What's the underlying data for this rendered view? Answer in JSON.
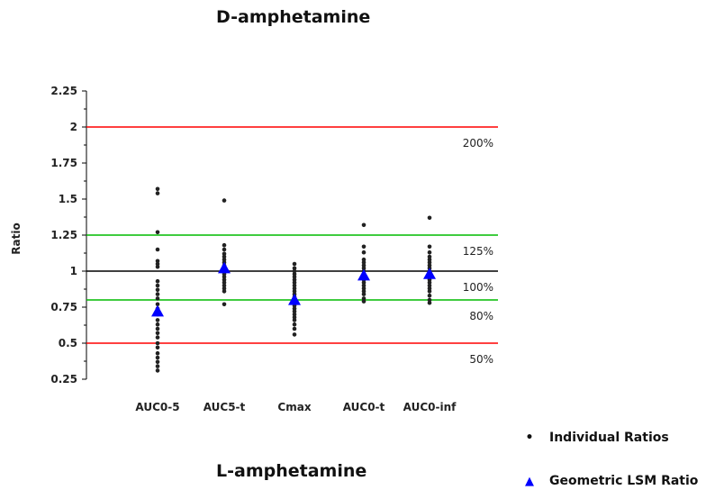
{
  "titles": {
    "top": "D-amphetamine",
    "bottom": "L-amphetamine"
  },
  "legend": {
    "individual": "Individual Ratios",
    "geometric": "Geometric LSM Ratio"
  },
  "colors": {
    "red_line": "#ff0000",
    "green_line": "#00bb00",
    "unity_line": "#000000",
    "points": "#222222",
    "lsm": "#0000ff"
  },
  "chart_data": {
    "type": "scatter",
    "ylabel": "Ratio",
    "ylim": [
      0.25,
      2.25
    ],
    "yticks": [
      "0.25",
      "0.5",
      "0.75",
      "1",
      "1.25",
      "1.5",
      "1.75",
      "2",
      "2.25"
    ],
    "categories": [
      "AUC0-5",
      "AUC5-t",
      "Cmax",
      "AUC0-t",
      "AUC0-inf"
    ],
    "reference_lines": [
      {
        "value": 2.0,
        "label": "200%",
        "color": "red"
      },
      {
        "value": 1.25,
        "label": "125%",
        "color": "green"
      },
      {
        "value": 1.0,
        "label": "100%",
        "color": "black"
      },
      {
        "value": 0.8,
        "label": "80%",
        "color": "green"
      },
      {
        "value": 0.5,
        "label": "50%",
        "color": "red"
      }
    ],
    "series": [
      {
        "name": "Individual Ratios",
        "points": [
          [
            1.57,
            1.54,
            1.27,
            1.15,
            1.07,
            1.05,
            1.03,
            0.93,
            0.9,
            0.87,
            0.84,
            0.81,
            0.77,
            0.74,
            0.7,
            0.66,
            0.63,
            0.6,
            0.57,
            0.54,
            0.5,
            0.47,
            0.43,
            0.4,
            0.37,
            0.34,
            0.31
          ],
          [
            1.49,
            1.18,
            1.15,
            1.12,
            1.1,
            1.08,
            1.06,
            1.04,
            1.02,
            1.0,
            0.98,
            0.96,
            0.94,
            0.92,
            0.9,
            0.88,
            0.86,
            0.77
          ],
          [
            1.05,
            1.02,
            1.0,
            0.98,
            0.96,
            0.94,
            0.92,
            0.9,
            0.88,
            0.86,
            0.84,
            0.82,
            0.8,
            0.78,
            0.76,
            0.74,
            0.72,
            0.7,
            0.68,
            0.66,
            0.63,
            0.6,
            0.56
          ],
          [
            1.32,
            1.17,
            1.13,
            1.08,
            1.06,
            1.04,
            1.02,
            1.0,
            0.98,
            0.96,
            0.94,
            0.92,
            0.9,
            0.88,
            0.86,
            0.84,
            0.81,
            0.79
          ],
          [
            1.37,
            1.17,
            1.13,
            1.1,
            1.08,
            1.06,
            1.04,
            1.02,
            1.0,
            0.98,
            0.96,
            0.94,
            0.92,
            0.9,
            0.88,
            0.86,
            0.83,
            0.8,
            0.78
          ]
        ]
      },
      {
        "name": "Geometric LSM Ratio",
        "values": [
          0.72,
          1.02,
          0.8,
          0.97,
          0.98
        ]
      }
    ]
  }
}
